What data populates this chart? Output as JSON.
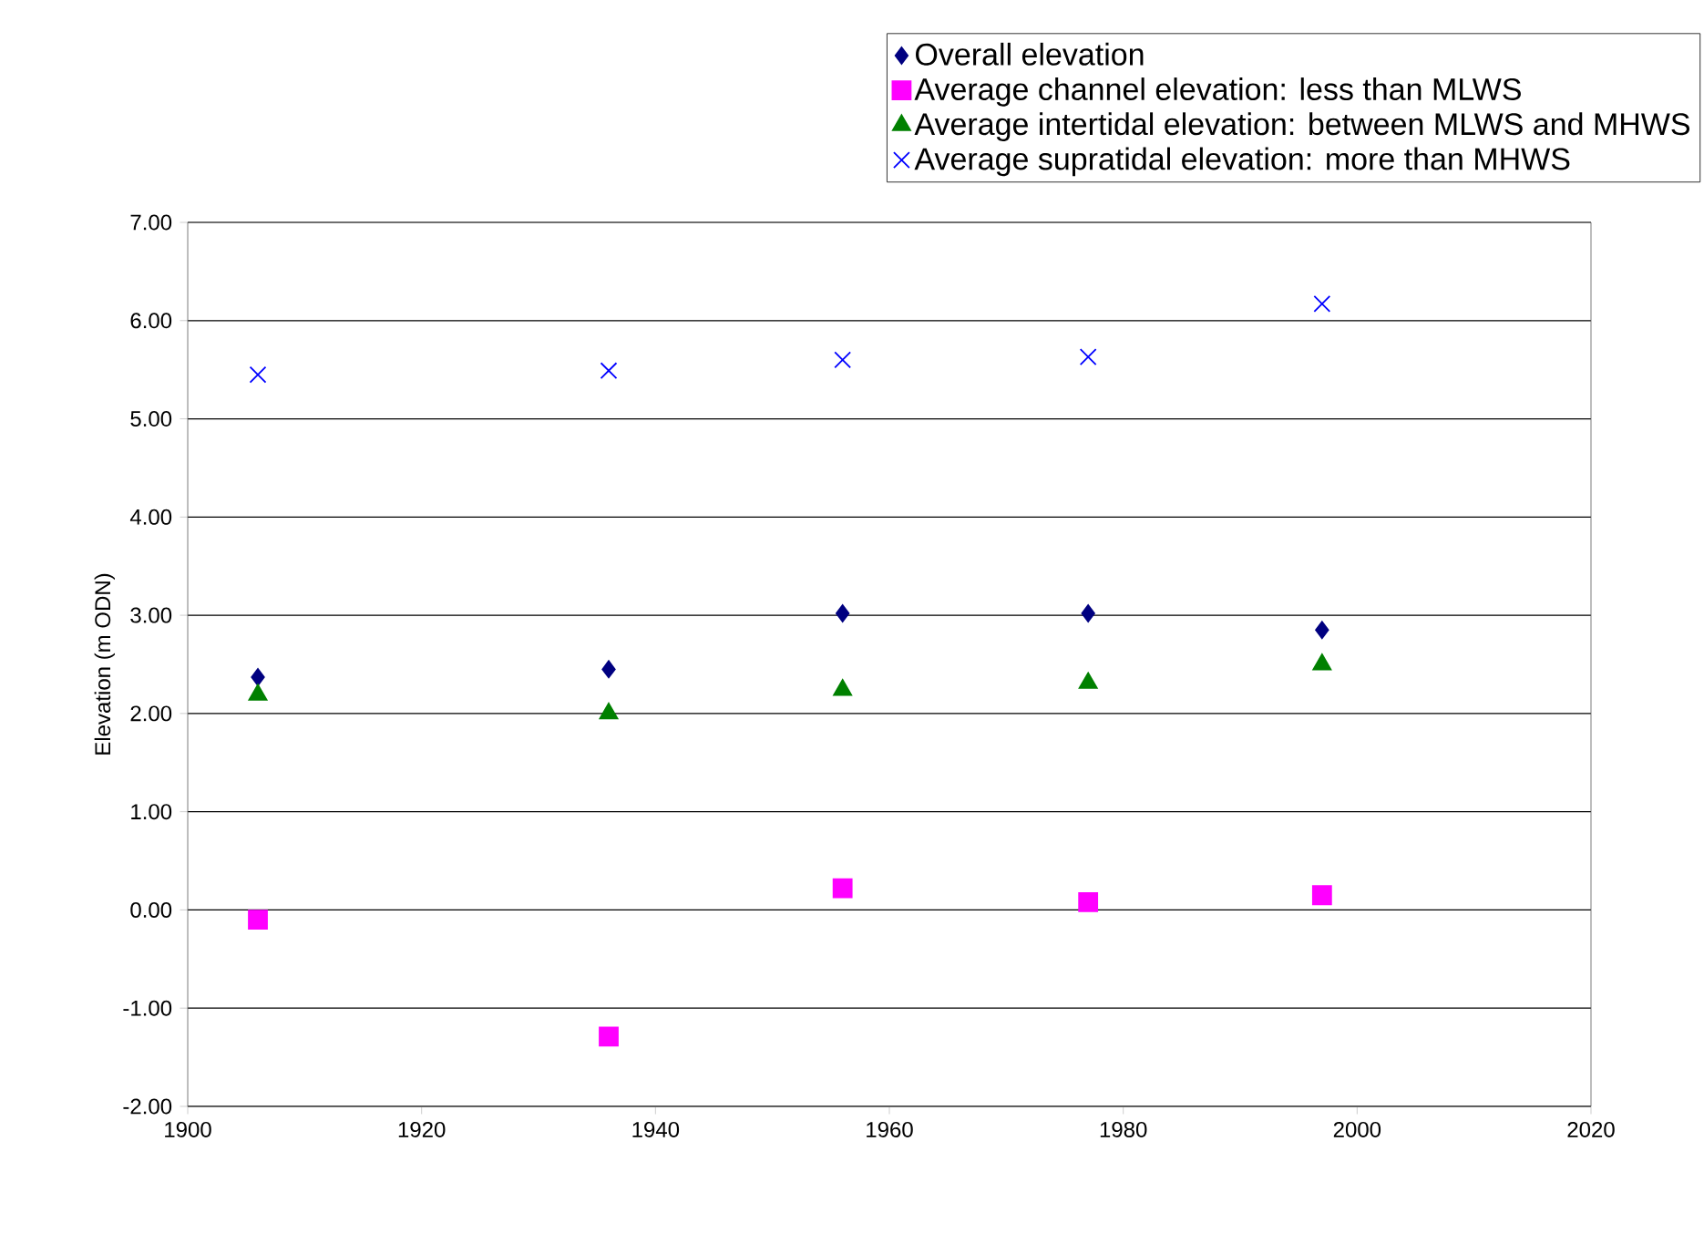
{
  "chart_data": {
    "type": "scatter",
    "ylabel": "Elevation (m ODN)",
    "x": [
      1906,
      1936,
      1956,
      1977,
      1997
    ],
    "series": [
      {
        "name": "Overall elevation",
        "color": "#000080",
        "marker": "diamond",
        "values": [
          2.37,
          2.45,
          3.02,
          3.02,
          2.85
        ]
      },
      {
        "name": "Average channel elevation: less than MLWS",
        "color": "#ff00ff",
        "marker": "square",
        "values": [
          -0.1,
          -1.29,
          0.22,
          0.08,
          0.15
        ]
      },
      {
        "name": "Average intertidal elevation: between MLWS and MHWS",
        "color": "#008000",
        "marker": "triangle",
        "values": [
          2.19,
          2.0,
          2.24,
          2.31,
          2.5
        ]
      },
      {
        "name": "Average supratidal elevation: more than MHWS",
        "color": "#0000ff",
        "marker": "cross",
        "values": [
          5.45,
          5.49,
          5.6,
          5.63,
          6.17
        ]
      }
    ],
    "xlim": [
      1900,
      2020
    ],
    "xticks": [
      1900,
      1920,
      1940,
      1960,
      1980,
      2000,
      2020
    ],
    "ylim": [
      -2,
      7
    ],
    "yticks": [
      {
        "value": -2,
        "label": "-2.00"
      },
      {
        "value": -1,
        "label": "-1.00"
      },
      {
        "value": 0,
        "label": "0.00"
      },
      {
        "value": 1,
        "label": "1.00"
      },
      {
        "value": 2,
        "label": "2.00"
      },
      {
        "value": 3,
        "label": "3.00"
      },
      {
        "value": 4,
        "label": "4.00"
      },
      {
        "value": 5,
        "label": "5.00"
      },
      {
        "value": 6,
        "label": "6.00"
      },
      {
        "value": 7,
        "label": "7.00"
      }
    ],
    "grid": "y",
    "legend": "top right"
  }
}
